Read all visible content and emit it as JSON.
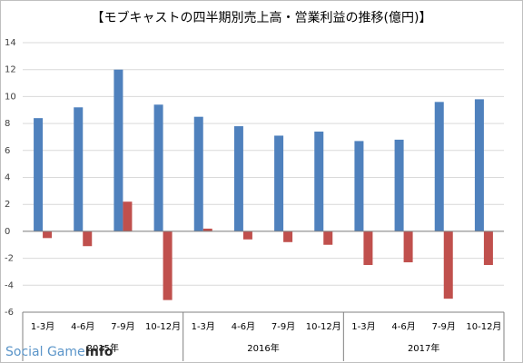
{
  "chart_data": {
    "type": "bar",
    "title": "【モブキャストの四半期別売上高・営業利益の推移(億円)】",
    "categories": [
      "1-3月",
      "4-6月",
      "7-9月",
      "10-12月",
      "1-3月",
      "4-6月",
      "7-9月",
      "10-12月",
      "1-3月",
      "4-6月",
      "7-9月",
      "10-12月"
    ],
    "groups": [
      {
        "label": "2015年",
        "count": 4
      },
      {
        "label": "2016年",
        "count": 4
      },
      {
        "label": "2017年",
        "count": 4
      }
    ],
    "series": [
      {
        "values": [
          8.4,
          9.2,
          12.0,
          9.4,
          8.5,
          7.8,
          7.1,
          7.4,
          6.7,
          6.8,
          9.6,
          9.8
        ],
        "color": "#4f81bd"
      },
      {
        "values": [
          -0.5,
          -1.1,
          2.2,
          -5.1,
          0.2,
          -0.6,
          -0.8,
          -1.0,
          -2.5,
          -2.3,
          -5.0,
          -2.5
        ],
        "color": "#c0504d"
      }
    ],
    "ylim": [
      -6,
      14
    ],
    "yticks": [
      -6,
      -4,
      -2,
      0,
      2,
      4,
      6,
      8,
      10,
      12,
      14
    ],
    "grid": true,
    "xlabel": "",
    "ylabel": ""
  },
  "watermark": {
    "part1": "Social Game",
    "part2": "Info"
  }
}
